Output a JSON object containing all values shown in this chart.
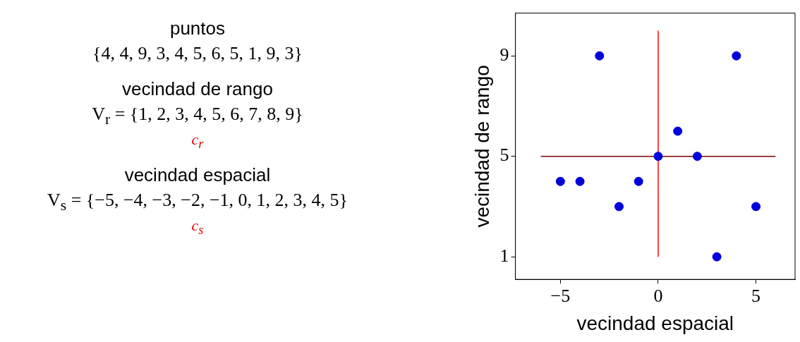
{
  "chart_data": {
    "type": "scatter",
    "xlabel": "vecindad espacial",
    "ylabel": "vecindad de rango",
    "x": [
      -5,
      -4,
      -3,
      -2,
      -1,
      0,
      1,
      2,
      3,
      4,
      5
    ],
    "series": [
      {
        "color": "#0000dd",
        "marker": "circle",
        "values": [
          4,
          4,
          9,
          3,
          4,
          5,
          6,
          5,
          1,
          9,
          3
        ]
      },
      {
        "type": "line",
        "color": "#ff0000",
        "marker": "none",
        "x": [
          0,
          0
        ],
        "values": [
          1,
          10
        ]
      },
      {
        "type": "line",
        "color": "#800000",
        "marker": "none",
        "x": [
          -6,
          6
        ],
        "values": [
          5,
          5
        ]
      }
    ],
    "xlim": [
      -7.3,
      7
    ],
    "xticks": [
      {
        "value": -5,
        "label": "−5"
      },
      0,
      5
    ],
    "ylim": [
      0.1,
      10.7
    ],
    "yticks": [
      1,
      5,
      9
    ],
    "grid": false,
    "legend": false,
    "annotations": [
      "puntos",
      "{4, 4, 9, 3, 4, 5, 6, 5, 1, 9, 3}",
      "vecindad de rango",
      "V$_{r}$ = {1, 2, 3, 4, 5, 6, 7, 8, 9}",
      "c$_{r}$",
      "vecindad espacial",
      "V$_{s}$ = {−5, −4, −3, −2, −1, 0, 1, 2, 3, 4, 5}",
      "c$_{s}$"
    ]
  }
}
